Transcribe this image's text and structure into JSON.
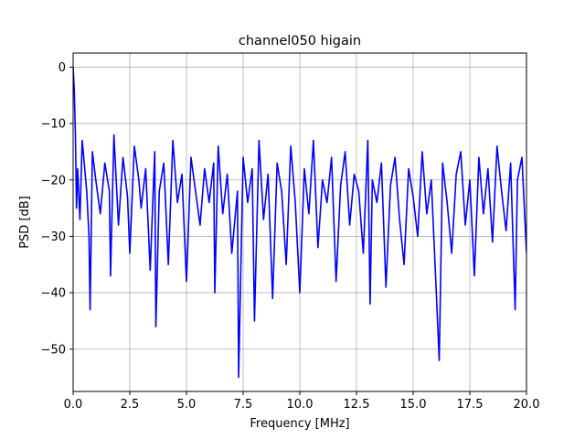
{
  "chart_data": {
    "type": "line",
    "title": "channel050 higain",
    "xlabel": "Frequency [MHz]",
    "ylabel": "PSD [dB]",
    "xlim": [
      0,
      20
    ],
    "ylim": [
      -57.5,
      2.5
    ],
    "xticks": [
      0,
      2.5,
      5,
      7.5,
      10,
      12.5,
      15,
      17.5,
      20
    ],
    "xtick_labels": [
      "0.0",
      "2.5",
      "5.0",
      "7.5",
      "10.0",
      "12.5",
      "15.0",
      "17.5",
      "20.0"
    ],
    "yticks": [
      0,
      -10,
      -20,
      -30,
      -40,
      -50
    ],
    "ytick_labels": [
      "0",
      "−10",
      "−20",
      "−30",
      "−40",
      "−50"
    ],
    "grid": true,
    "line_color": "#0000ff",
    "series": [
      {
        "x": [
          0.0,
          0.05,
          0.1,
          0.15,
          0.2,
          0.3,
          0.4,
          0.6,
          0.7,
          0.75,
          0.85,
          1.0,
          1.2,
          1.4,
          1.6,
          1.65,
          1.8,
          2.0,
          2.2,
          2.4,
          2.5,
          2.7,
          2.9,
          3.0,
          3.2,
          3.4,
          3.6,
          3.65,
          3.8,
          4.0,
          4.2,
          4.4,
          4.6,
          4.8,
          5.0,
          5.2,
          5.4,
          5.6,
          5.8,
          6.0,
          6.2,
          6.25,
          6.4,
          6.6,
          6.8,
          7.0,
          7.25,
          7.3,
          7.5,
          7.7,
          7.9,
          8.0,
          8.2,
          8.4,
          8.6,
          8.8,
          9.0,
          9.2,
          9.4,
          9.6,
          9.8,
          10.0,
          10.2,
          10.4,
          10.6,
          10.8,
          11.0,
          11.2,
          11.4,
          11.6,
          11.8,
          12.0,
          12.2,
          12.4,
          12.6,
          12.8,
          13.0,
          13.1,
          13.2,
          13.4,
          13.6,
          13.8,
          14.0,
          14.2,
          14.4,
          14.6,
          14.8,
          15.0,
          15.2,
          15.4,
          15.6,
          15.8,
          16.0,
          16.15,
          16.3,
          16.5,
          16.7,
          16.9,
          17.1,
          17.3,
          17.5,
          17.7,
          17.9,
          18.1,
          18.3,
          18.5,
          18.7,
          18.9,
          19.1,
          19.3,
          19.5,
          19.6,
          19.8,
          20.0
        ],
        "y": [
          0,
          -4,
          -12,
          -25,
          -18,
          -27,
          -13,
          -22,
          -30,
          -43,
          -15,
          -20,
          -26,
          -17,
          -22,
          -37,
          -12,
          -28,
          -16,
          -23,
          -33,
          -14,
          -20,
          -25,
          -18,
          -36,
          -15,
          -46,
          -22,
          -17,
          -35,
          -13,
          -24,
          -19,
          -38,
          -16,
          -22,
          -28,
          -18,
          -24,
          -17,
          -40,
          -14,
          -26,
          -19,
          -33,
          -22,
          -55,
          -16,
          -24,
          -18,
          -45,
          -13,
          -27,
          -19,
          -41,
          -17,
          -22,
          -35,
          -14,
          -24,
          -40,
          -18,
          -26,
          -13,
          -32,
          -20,
          -24,
          -16,
          -38,
          -21,
          -15,
          -28,
          -19,
          -22,
          -33,
          -13,
          -42,
          -20,
          -24,
          -17,
          -39,
          -21,
          -16,
          -27,
          -35,
          -18,
          -23,
          -30,
          -15,
          -26,
          -20,
          -38,
          -52,
          -17,
          -24,
          -33,
          -19,
          -15,
          -28,
          -20,
          -37,
          -16,
          -26,
          -18,
          -31,
          -14,
          -22,
          -29,
          -17,
          -43,
          -20,
          -16,
          -33
        ]
      }
    ]
  }
}
